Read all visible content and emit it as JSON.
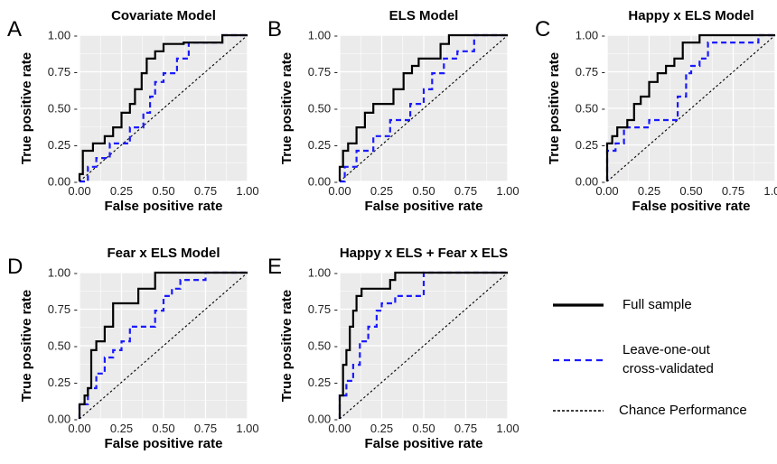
{
  "chart_data": [
    {
      "panel": "A",
      "type": "line",
      "title": "Covariate Model",
      "xlabel": "False positive rate",
      "ylabel": "True positive rate",
      "xlim": [
        0,
        1
      ],
      "ylim": [
        0,
        1
      ],
      "xticks": [
        "0.00",
        "0.25",
        "0.50",
        "0.75",
        "1.00"
      ],
      "yticks": [
        "0.00 -",
        "0.25 -",
        "0.50 -",
        "0.75 -",
        "1.00 -"
      ],
      "grid": true,
      "series": [
        {
          "name": "Full sample",
          "color": "#000000",
          "style": "solid",
          "x": [
            0,
            0,
            0.02,
            0.02,
            0.08,
            0.08,
            0.15,
            0.15,
            0.2,
            0.2,
            0.25,
            0.25,
            0.3,
            0.3,
            0.33,
            0.33,
            0.37,
            0.37,
            0.4,
            0.4,
            0.45,
            0.45,
            0.5,
            0.5,
            0.62,
            0.62,
            0.85,
            0.85,
            1
          ],
          "y": [
            0,
            0.05,
            0.05,
            0.21,
            0.21,
            0.26,
            0.26,
            0.31,
            0.31,
            0.37,
            0.37,
            0.47,
            0.47,
            0.53,
            0.53,
            0.63,
            0.63,
            0.74,
            0.74,
            0.84,
            0.84,
            0.89,
            0.89,
            0.94,
            0.94,
            0.95,
            0.95,
            1,
            1
          ]
        },
        {
          "name": "Leave-one-out cross-validated",
          "color": "#1a1aff",
          "style": "dashed",
          "x": [
            0,
            0.05,
            0.05,
            0.1,
            0.1,
            0.18,
            0.18,
            0.3,
            0.3,
            0.38,
            0.38,
            0.42,
            0.42,
            0.45,
            0.45,
            0.5,
            0.5,
            0.58,
            0.58,
            0.65,
            0.65,
            0.72,
            0.72,
            0.85,
            0.85,
            1
          ],
          "y": [
            0,
            0,
            0.1,
            0.1,
            0.16,
            0.16,
            0.26,
            0.26,
            0.37,
            0.37,
            0.47,
            0.47,
            0.58,
            0.58,
            0.68,
            0.68,
            0.74,
            0.74,
            0.84,
            0.84,
            0.95,
            0.95,
            0.95,
            0.95,
            1,
            1
          ]
        }
      ]
    },
    {
      "panel": "B",
      "type": "line",
      "title": "ELS Model",
      "xlabel": "False positive rate",
      "ylabel": "True positive rate",
      "xlim": [
        0,
        1
      ],
      "ylim": [
        0,
        1
      ],
      "xticks": [
        "0.00",
        "0.25",
        "0.50",
        "0.75",
        "1.00"
      ],
      "yticks": [
        "0.00 -",
        "0.25 -",
        "0.50 -",
        "0.75 -",
        "1.00 -"
      ],
      "grid": true,
      "series": [
        {
          "name": "Full sample",
          "color": "#000000",
          "style": "solid",
          "x": [
            0,
            0,
            0.02,
            0.02,
            0.05,
            0.05,
            0.1,
            0.1,
            0.15,
            0.15,
            0.2,
            0.2,
            0.32,
            0.32,
            0.38,
            0.38,
            0.43,
            0.43,
            0.47,
            0.47,
            0.6,
            0.6,
            0.65,
            0.65,
            1
          ],
          "y": [
            0,
            0.1,
            0.1,
            0.21,
            0.21,
            0.26,
            0.26,
            0.37,
            0.37,
            0.47,
            0.47,
            0.53,
            0.53,
            0.63,
            0.63,
            0.74,
            0.74,
            0.79,
            0.79,
            0.84,
            0.84,
            0.94,
            0.94,
            1,
            1
          ]
        },
        {
          "name": "Leave-one-out cross-validated",
          "color": "#1a1aff",
          "style": "dashed",
          "x": [
            0,
            0.03,
            0.03,
            0.1,
            0.1,
            0.2,
            0.2,
            0.3,
            0.3,
            0.42,
            0.42,
            0.5,
            0.5,
            0.55,
            0.55,
            0.62,
            0.62,
            0.7,
            0.7,
            0.8,
            0.8,
            1
          ],
          "y": [
            0,
            0,
            0.1,
            0.1,
            0.21,
            0.21,
            0.31,
            0.31,
            0.42,
            0.42,
            0.53,
            0.53,
            0.63,
            0.63,
            0.74,
            0.74,
            0.84,
            0.84,
            0.89,
            0.89,
            1,
            1
          ]
        }
      ]
    },
    {
      "panel": "C",
      "type": "line",
      "title": "Happy x ELS Model",
      "xlabel": "False positive rate",
      "ylabel": "True positive rate",
      "xlim": [
        0,
        1
      ],
      "ylim": [
        0,
        1
      ],
      "xticks": [
        "0.00",
        "0.25",
        "0.50",
        "0.75",
        "1.00"
      ],
      "yticks": [
        "0.00 -",
        "0.25 -",
        "0.50 -",
        "0.75 -",
        "1.00 -"
      ],
      "grid": true,
      "series": [
        {
          "name": "Full sample",
          "color": "#000000",
          "style": "solid",
          "x": [
            0,
            0,
            0.03,
            0.03,
            0.06,
            0.06,
            0.12,
            0.12,
            0.16,
            0.16,
            0.2,
            0.2,
            0.25,
            0.25,
            0.3,
            0.3,
            0.35,
            0.35,
            0.4,
            0.4,
            0.45,
            0.45,
            0.55,
            0.55,
            1
          ],
          "y": [
            0,
            0.26,
            0.26,
            0.31,
            0.31,
            0.37,
            0.37,
            0.42,
            0.42,
            0.53,
            0.53,
            0.58,
            0.58,
            0.68,
            0.68,
            0.74,
            0.74,
            0.79,
            0.79,
            0.84,
            0.84,
            0.95,
            0.95,
            1,
            1
          ]
        },
        {
          "name": "Leave-one-out cross-validated",
          "color": "#1a1aff",
          "style": "dashed",
          "x": [
            0,
            0,
            0.05,
            0.05,
            0.1,
            0.1,
            0.25,
            0.25,
            0.42,
            0.42,
            0.47,
            0.47,
            0.5,
            0.5,
            0.55,
            0.55,
            0.6,
            0.6,
            0.65,
            0.65,
            0.9,
            0.9,
            1
          ],
          "y": [
            0,
            0.21,
            0.21,
            0.26,
            0.26,
            0.37,
            0.37,
            0.42,
            0.42,
            0.58,
            0.58,
            0.74,
            0.74,
            0.79,
            0.79,
            0.84,
            0.84,
            0.95,
            0.95,
            0.95,
            0.95,
            1,
            1
          ]
        }
      ]
    },
    {
      "panel": "D",
      "type": "line",
      "title": "Fear x ELS Model",
      "xlabel": "False positive rate",
      "ylabel": "True positive rate",
      "xlim": [
        0,
        1
      ],
      "ylim": [
        0,
        1
      ],
      "xticks": [
        "0.00",
        "0.25",
        "0.50",
        "0.75",
        "1.00"
      ],
      "yticks": [
        "0.00 -",
        "0.25 -",
        "0.50 -",
        "0.75 -",
        "1.00 -"
      ],
      "grid": true,
      "series": [
        {
          "name": "Full sample",
          "color": "#000000",
          "style": "solid",
          "x": [
            0,
            0,
            0.03,
            0.03,
            0.05,
            0.05,
            0.07,
            0.07,
            0.1,
            0.1,
            0.15,
            0.15,
            0.2,
            0.2,
            0.35,
            0.35,
            0.45,
            0.45,
            1
          ],
          "y": [
            0,
            0.1,
            0.1,
            0.16,
            0.16,
            0.21,
            0.21,
            0.47,
            0.47,
            0.53,
            0.53,
            0.63,
            0.63,
            0.79,
            0.79,
            0.89,
            0.89,
            1,
            1
          ]
        },
        {
          "name": "Leave-one-out cross-validated",
          "color": "#1a1aff",
          "style": "dashed",
          "x": [
            0,
            0,
            0.05,
            0.05,
            0.1,
            0.1,
            0.15,
            0.15,
            0.2,
            0.2,
            0.25,
            0.25,
            0.3,
            0.3,
            0.45,
            0.45,
            0.5,
            0.5,
            0.55,
            0.55,
            0.6,
            0.6,
            0.68,
            0.68,
            0.75,
            0.75,
            1
          ],
          "y": [
            0,
            0.1,
            0.1,
            0.21,
            0.21,
            0.31,
            0.31,
            0.42,
            0.42,
            0.47,
            0.47,
            0.53,
            0.53,
            0.63,
            0.63,
            0.74,
            0.74,
            0.84,
            0.84,
            0.89,
            0.89,
            0.95,
            0.95,
            0.95,
            0.95,
            1,
            1
          ]
        }
      ]
    },
    {
      "panel": "E",
      "type": "line",
      "title": "Happy x ELS + Fear x ELS",
      "xlabel": "False positive rate",
      "ylabel": "True positive rate",
      "xlim": [
        0,
        1
      ],
      "ylim": [
        0,
        1
      ],
      "xticks": [
        "0.00",
        "0.25",
        "0.50",
        "0.75",
        "1.00"
      ],
      "yticks": [
        "0.00 -",
        "0.25 -",
        "0.50 -",
        "0.75 -",
        "1.00 -"
      ],
      "grid": true,
      "series": [
        {
          "name": "Full sample",
          "color": "#000000",
          "style": "solid",
          "x": [
            0,
            0,
            0.02,
            0.02,
            0.04,
            0.04,
            0.06,
            0.06,
            0.08,
            0.08,
            0.1,
            0.1,
            0.13,
            0.13,
            0.3,
            0.3,
            0.33,
            0.33,
            1
          ],
          "y": [
            0,
            0.16,
            0.16,
            0.37,
            0.37,
            0.47,
            0.47,
            0.63,
            0.63,
            0.74,
            0.74,
            0.84,
            0.84,
            0.89,
            0.89,
            0.95,
            0.95,
            1,
            1
          ]
        },
        {
          "name": "Leave-one-out cross-validated",
          "color": "#1a1aff",
          "style": "dashed",
          "x": [
            0,
            0,
            0.04,
            0.04,
            0.08,
            0.08,
            0.12,
            0.12,
            0.17,
            0.17,
            0.22,
            0.22,
            0.25,
            0.25,
            0.33,
            0.33,
            0.5,
            0.5,
            1
          ],
          "y": [
            0,
            0.16,
            0.16,
            0.26,
            0.26,
            0.37,
            0.37,
            0.53,
            0.53,
            0.63,
            0.63,
            0.74,
            0.74,
            0.79,
            0.79,
            0.84,
            0.84,
            1,
            1
          ]
        }
      ]
    }
  ],
  "legend": {
    "placement": "bottom-right",
    "items": [
      {
        "label": "Full sample",
        "color": "#000000",
        "style": "solid"
      },
      {
        "label": "Leave-one-out",
        "label2": "cross-validated",
        "color": "#1a1aff",
        "style": "dashed"
      },
      {
        "label": "Chance Performance",
        "color": "#000000",
        "style": "dotted"
      }
    ]
  },
  "colors": {
    "panel_bg": "#ebebeb",
    "grid": "#ffffff",
    "full": "#000000",
    "loocv": "#1a1aff"
  }
}
